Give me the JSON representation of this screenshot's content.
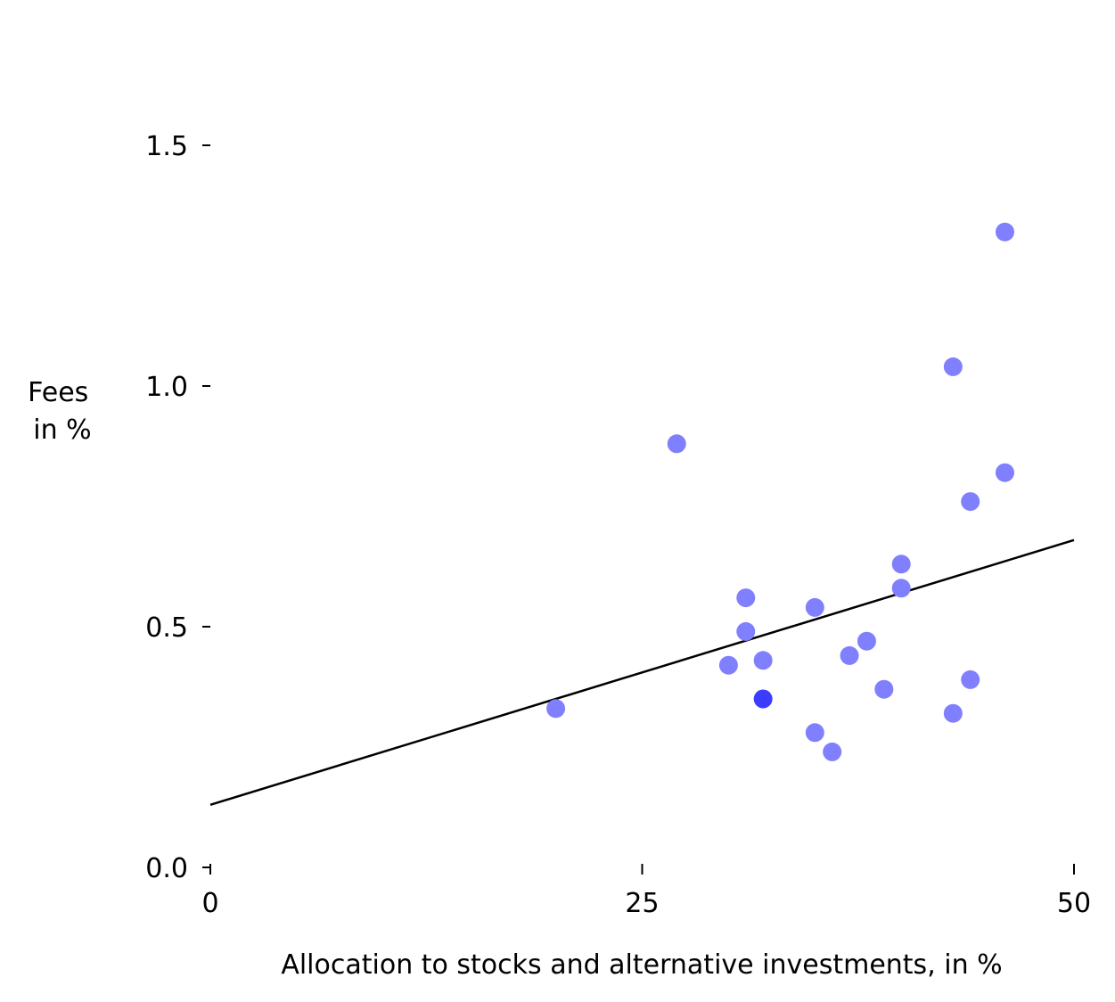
{
  "chart_data": {
    "type": "scatter",
    "title": "",
    "xlabel": "Allocation to stocks and alternative investments, in %",
    "ylabel_lines": [
      "Fees",
      "in %"
    ],
    "xlim": [
      0,
      50
    ],
    "ylim": [
      0,
      1.5
    ],
    "x_ticks": [
      0,
      25,
      50
    ],
    "x_tick_labels": [
      "0",
      "25",
      "50"
    ],
    "y_ticks": [
      0,
      0.5,
      1.0,
      1.5
    ],
    "y_tick_labels": [
      "0.0",
      "0.5",
      "1.0",
      "1.5"
    ],
    "grid": false,
    "points": [
      {
        "x": 20,
        "y": 0.33
      },
      {
        "x": 27,
        "y": 0.88
      },
      {
        "x": 30,
        "y": 0.42
      },
      {
        "x": 31,
        "y": 0.56
      },
      {
        "x": 31,
        "y": 0.49
      },
      {
        "x": 32,
        "y": 0.43
      },
      {
        "x": 35,
        "y": 0.54
      },
      {
        "x": 35,
        "y": 0.28
      },
      {
        "x": 36,
        "y": 0.24
      },
      {
        "x": 37,
        "y": 0.44
      },
      {
        "x": 38,
        "y": 0.47
      },
      {
        "x": 39,
        "y": 0.37
      },
      {
        "x": 40,
        "y": 0.63
      },
      {
        "x": 40,
        "y": 0.58
      },
      {
        "x": 43,
        "y": 1.04
      },
      {
        "x": 43,
        "y": 0.32
      },
      {
        "x": 44,
        "y": 0.76
      },
      {
        "x": 44,
        "y": 0.39
      },
      {
        "x": 46,
        "y": 1.32
      },
      {
        "x": 46,
        "y": 0.82
      }
    ],
    "highlight_point": {
      "x": 32,
      "y": 0.35
    },
    "trend_line": {
      "x": [
        0,
        50
      ],
      "y": [
        0.13,
        0.68
      ]
    },
    "colors": {
      "points": "#8080ff",
      "highlight": "#3c3cff",
      "trend_line": "#000000",
      "axis": "#000000"
    }
  }
}
